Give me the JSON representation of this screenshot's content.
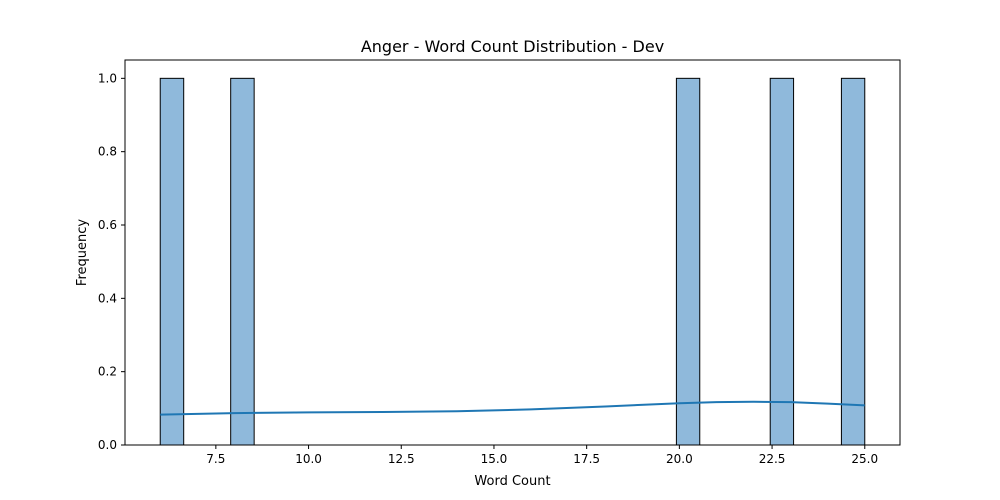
{
  "chart_data": {
    "type": "bar",
    "title": "Anger - Word Count Distribution - Dev",
    "xlabel": "Word Count",
    "ylabel": "Frequency",
    "xlim": [
      5.05,
      25.95
    ],
    "ylim": [
      0,
      1.05
    ],
    "xticks": [
      "7.5",
      "10.0",
      "12.5",
      "15.0",
      "17.5",
      "20.0",
      "22.5",
      "25.0"
    ],
    "yticks": [
      "0.0",
      "0.2",
      "0.4",
      "0.6",
      "0.8",
      "1.0"
    ],
    "bin_width": 0.633,
    "bars": [
      {
        "x_start": 6.0,
        "x_end": 6.633,
        "value": 1
      },
      {
        "x_start": 7.9,
        "x_end": 8.533,
        "value": 1
      },
      {
        "x_start": 19.92,
        "x_end": 20.55,
        "value": 1
      },
      {
        "x_start": 22.45,
        "x_end": 23.08,
        "value": 1
      },
      {
        "x_start": 24.37,
        "x_end": 25.0,
        "value": 1
      }
    ],
    "kde": {
      "x": [
        6,
        8,
        10,
        12,
        14,
        16,
        18,
        20,
        21,
        22,
        23,
        24,
        25
      ],
      "y": [
        0.083,
        0.087,
        0.089,
        0.09,
        0.092,
        0.097,
        0.105,
        0.114,
        0.117,
        0.118,
        0.117,
        0.113,
        0.108
      ]
    },
    "grid": false,
    "legend": "none",
    "colors": {
      "bar_fill": "#8fb9db",
      "bar_edge": "#000000",
      "kde_line": "#1f77b4"
    }
  }
}
